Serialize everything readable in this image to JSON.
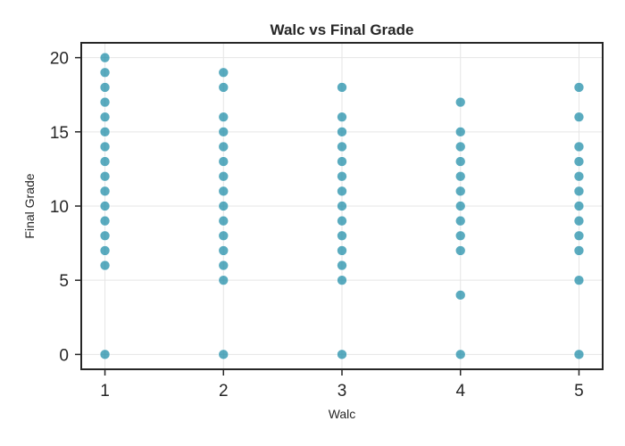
{
  "chart_data": {
    "type": "scatter",
    "title": "Walc vs Final Grade",
    "xlabel": "Walc",
    "ylabel": "Final Grade",
    "xlim": [
      0.8,
      5.2
    ],
    "ylim": [
      -1,
      21
    ],
    "xticks": [
      1,
      2,
      3,
      4,
      5
    ],
    "yticks": [
      0,
      5,
      10,
      15,
      20
    ],
    "grid": true,
    "point_color": "#1a8aa6",
    "points": [
      {
        "x": 1,
        "y": 0
      },
      {
        "x": 1,
        "y": 6
      },
      {
        "x": 1,
        "y": 7
      },
      {
        "x": 1,
        "y": 8
      },
      {
        "x": 1,
        "y": 9
      },
      {
        "x": 1,
        "y": 10
      },
      {
        "x": 1,
        "y": 11
      },
      {
        "x": 1,
        "y": 12
      },
      {
        "x": 1,
        "y": 13
      },
      {
        "x": 1,
        "y": 14
      },
      {
        "x": 1,
        "y": 15
      },
      {
        "x": 1,
        "y": 16
      },
      {
        "x": 1,
        "y": 17
      },
      {
        "x": 1,
        "y": 18
      },
      {
        "x": 1,
        "y": 19
      },
      {
        "x": 1,
        "y": 20
      },
      {
        "x": 2,
        "y": 0
      },
      {
        "x": 2,
        "y": 5
      },
      {
        "x": 2,
        "y": 6
      },
      {
        "x": 2,
        "y": 7
      },
      {
        "x": 2,
        "y": 8
      },
      {
        "x": 2,
        "y": 9
      },
      {
        "x": 2,
        "y": 10
      },
      {
        "x": 2,
        "y": 11
      },
      {
        "x": 2,
        "y": 12
      },
      {
        "x": 2,
        "y": 13
      },
      {
        "x": 2,
        "y": 14
      },
      {
        "x": 2,
        "y": 15
      },
      {
        "x": 2,
        "y": 16
      },
      {
        "x": 2,
        "y": 18
      },
      {
        "x": 2,
        "y": 19
      },
      {
        "x": 3,
        "y": 0
      },
      {
        "x": 3,
        "y": 5
      },
      {
        "x": 3,
        "y": 6
      },
      {
        "x": 3,
        "y": 7
      },
      {
        "x": 3,
        "y": 8
      },
      {
        "x": 3,
        "y": 9
      },
      {
        "x": 3,
        "y": 10
      },
      {
        "x": 3,
        "y": 11
      },
      {
        "x": 3,
        "y": 12
      },
      {
        "x": 3,
        "y": 13
      },
      {
        "x": 3,
        "y": 14
      },
      {
        "x": 3,
        "y": 15
      },
      {
        "x": 3,
        "y": 16
      },
      {
        "x": 3,
        "y": 18
      },
      {
        "x": 4,
        "y": 0
      },
      {
        "x": 4,
        "y": 4
      },
      {
        "x": 4,
        "y": 7
      },
      {
        "x": 4,
        "y": 8
      },
      {
        "x": 4,
        "y": 9
      },
      {
        "x": 4,
        "y": 10
      },
      {
        "x": 4,
        "y": 11
      },
      {
        "x": 4,
        "y": 12
      },
      {
        "x": 4,
        "y": 13
      },
      {
        "x": 4,
        "y": 14
      },
      {
        "x": 4,
        "y": 15
      },
      {
        "x": 4,
        "y": 17
      },
      {
        "x": 5,
        "y": 0
      },
      {
        "x": 5,
        "y": 5
      },
      {
        "x": 5,
        "y": 7
      },
      {
        "x": 5,
        "y": 8
      },
      {
        "x": 5,
        "y": 9
      },
      {
        "x": 5,
        "y": 10
      },
      {
        "x": 5,
        "y": 11
      },
      {
        "x": 5,
        "y": 12
      },
      {
        "x": 5,
        "y": 13
      },
      {
        "x": 5,
        "y": 14
      },
      {
        "x": 5,
        "y": 16
      },
      {
        "x": 5,
        "y": 18
      }
    ]
  }
}
